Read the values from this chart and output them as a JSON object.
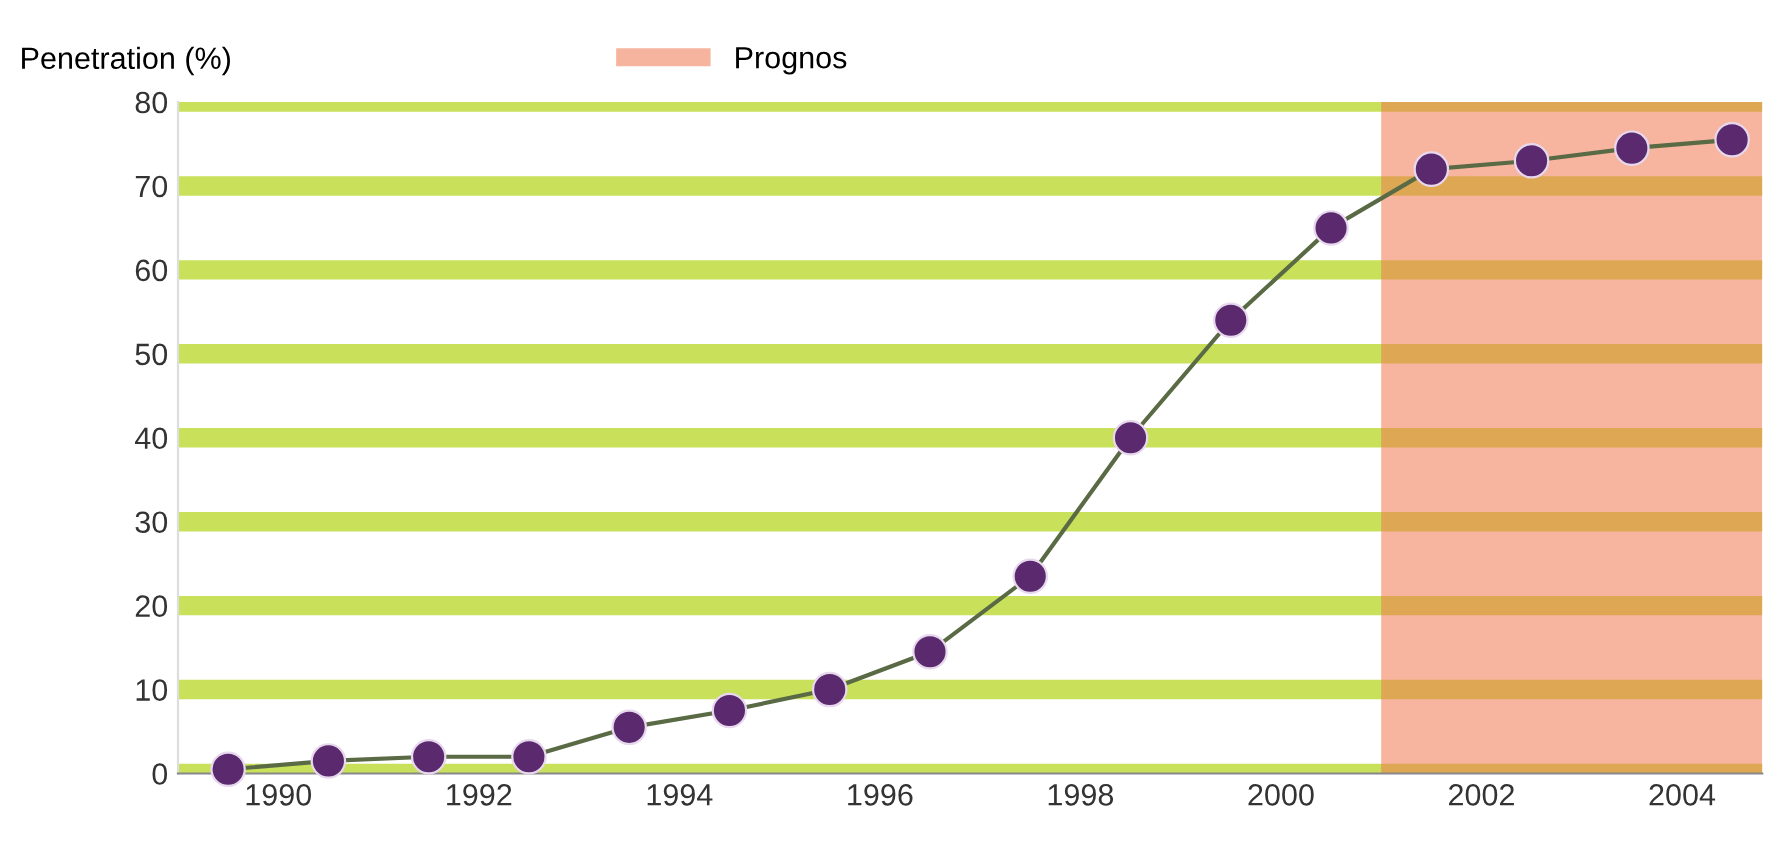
{
  "chart_data": {
    "type": "line",
    "ylabel": "Penetration (%)",
    "x": [
      1989.5,
      1990.5,
      1991.5,
      1992.5,
      1993.5,
      1994.5,
      1995.5,
      1996.5,
      1997.5,
      1998.5,
      1999.5,
      2000.5,
      2001.5,
      2002.5,
      2003.5,
      2004.5
    ],
    "series": [
      {
        "color": "#5b2a6e",
        "values": [
          0.5,
          1.5,
          2,
          2,
          5.5,
          7.5,
          10,
          14.5,
          23.5,
          40,
          54,
          65,
          72,
          73,
          74.5,
          75.5
        ]
      }
    ],
    "xlim": [
      1989,
      2004.8
    ],
    "xticks": [
      1990,
      1992,
      1994,
      1996,
      1998,
      2000,
      2002,
      2004
    ],
    "ylim": [
      0,
      80
    ],
    "yticks": [
      0,
      10,
      20,
      30,
      40,
      50,
      60,
      70,
      80
    ],
    "bands": [
      {
        "axis": "x",
        "from": 2001,
        "to": 2004.8,
        "label": "Prognos",
        "color": "#f07850"
      }
    ],
    "grid": "y",
    "marker": "circle",
    "line_style": "solid",
    "legend": "top"
  }
}
